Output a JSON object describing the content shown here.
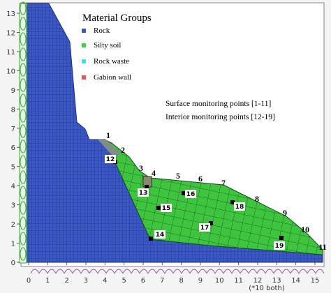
{
  "legend": {
    "title": "Material Groups",
    "items": [
      "Rock",
      "Silty soil",
      "Rock waste",
      "Gabion wall"
    ]
  },
  "annotations": [
    "Surface monitoring points [1-11]",
    "Interior monitoring points [12-19]"
  ],
  "surface_points": [
    "1",
    "2",
    "3",
    "4",
    "5",
    "6",
    "7",
    "8",
    "9",
    "10",
    "11"
  ],
  "interior_points": [
    "12",
    "13",
    "14",
    "15",
    "16",
    "17",
    "18",
    "19"
  ],
  "x_ticks": [
    "0",
    "1",
    "2",
    "3",
    "4",
    "5",
    "6",
    "7",
    "8",
    "9",
    "10",
    "11",
    "12",
    "13",
    "14",
    "15"
  ],
  "y_ticks": [
    "0",
    "1",
    "2",
    "3",
    "4",
    "5",
    "6",
    "7",
    "8",
    "9",
    "10",
    "11",
    "12",
    "13"
  ],
  "axis_note": "(*10 both)"
}
